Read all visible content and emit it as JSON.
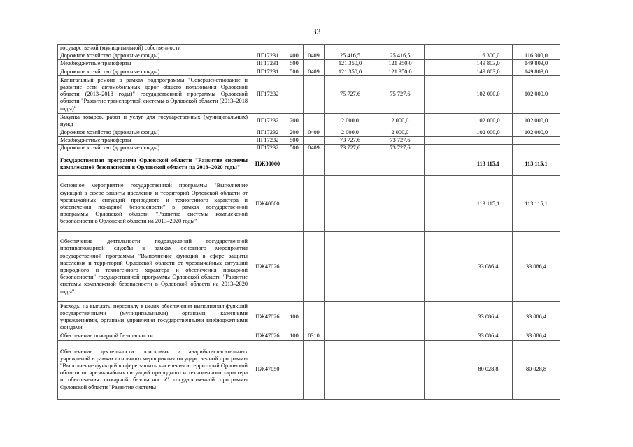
{
  "page_number": "33",
  "rows": [
    {
      "desc": "государственой (муниципальной) собственности",
      "code": "",
      "vr": "",
      "rz": "",
      "v1": "",
      "v2": "",
      "v3": "",
      "v4": "",
      "v5": "",
      "bold": false,
      "h": 10
    },
    {
      "desc": "Дорожное хозяйство (дорожные фонды)",
      "code": "ПГ17231",
      "vr": "400",
      "rz": "0409",
      "v1": "25 416,5",
      "v2": "25 416,5",
      "v3": "",
      "v4": "116 300,0",
      "v5": "116 300,0",
      "bold": false,
      "h": 11
    },
    {
      "desc": "Межбюджетные трансферты",
      "code": "ПГ17231",
      "vr": "500",
      "rz": "",
      "v1": "121 350,0",
      "v2": "121 350,0",
      "v3": "",
      "v4": "149 803,0",
      "v5": "149 803,0",
      "bold": false,
      "h": 11
    },
    {
      "desc": "Дорожное хозяйство (дорожные фонды)",
      "code": "ПГ17231",
      "vr": "500",
      "rz": "0409",
      "v1": "121 350,0",
      "v2": "121 350,0",
      "v3": "",
      "v4": "149 803,0",
      "v5": "149 803,0",
      "bold": false,
      "h": 11
    },
    {
      "desc": "Капитальный ремонт в рамках подпрограммы \"Совершенствование и развитие сети автомобильных дорог общего пользования Орловской области (2013–2018 годы)\" государственной программы Орловской области \"Развитие транспортной системы в Орловской области (2013–2018 годы)\"",
      "code": "ПГ17232",
      "vr": "",
      "rz": "",
      "v1": "75 727,6",
      "v2": "75 727,6",
      "v3": "",
      "v4": "102 000,0",
      "v5": "102 000,0",
      "bold": false,
      "h": 54
    },
    {
      "desc": "Закупка товаров, работ и услуг для государственных (муниципальных) нужд",
      "code": "ПГ17232",
      "vr": "200",
      "rz": "",
      "v1": "2 000,0",
      "v2": "2 000,0",
      "v3": "",
      "v4": "102 000,0",
      "v5": "102 000,0",
      "bold": false,
      "h": 22
    },
    {
      "desc": "Дорожное хозяйство (дорожные фонды)",
      "code": "ПГ17232",
      "vr": "200",
      "rz": "0409",
      "v1": "2 000,0",
      "v2": "2 000,0",
      "v3": "",
      "v4": "102 000,0",
      "v5": "102 000,0",
      "bold": false,
      "h": 11
    },
    {
      "desc": "Межбюджетные трансферты",
      "code": "ПГ17232",
      "vr": "500",
      "rz": "",
      "v1": "73 727,6",
      "v2": "73 727,6",
      "v3": "",
      "v4": "",
      "v5": "",
      "bold": false,
      "h": 11
    },
    {
      "desc": "Дорожное хозяйство (дорожные фонды)",
      "code": "ПГ17232",
      "vr": "500",
      "rz": "0409",
      "v1": "73 727,6",
      "v2": "73 727,6",
      "v3": "",
      "v4": "",
      "v5": "",
      "bold": false,
      "h": 11
    },
    {
      "desc": "Государственная программа Орловской области \"Развитие системы комплексной безопасности в Орловской области на 2013–2020 годы\"",
      "code": "ПЖ00000",
      "vr": "",
      "rz": "",
      "v1": "",
      "v2": "",
      "v3": "",
      "v4": "113 115,1",
      "v5": "113 115,1",
      "bold": true,
      "h": 34
    },
    {
      "desc": "Основное мероприятие государственной программы \"Выполнение функций в сфере защиты населения и территорий Орловской области от чрезвычайных ситуаций природного и техногенного характера и обеспечения пожарной безопасности\" в рамках государственной программы Орловской области \"Развитие системы комплексной безопасности в Орловской области на 2013–2020 годы\"",
      "code": "ПЖ40000",
      "vr": "",
      "rz": "",
      "v1": "",
      "v2": "",
      "v3": "",
      "v4": "113 115,1",
      "v5": "113 115,1",
      "bold": false,
      "h": 80
    },
    {
      "desc": "Обеспечение деятельности подразделений государственной противопожарной службы в рамках основного мероприятия государственной программы \"Выполнение функций в сфере защиты населения и территорий Орловской области от чрезвычайных ситуаций природного и техногенного характера и обеспечения пожарной безопасности\" государственной программы Орловской области \"Развитие системы комплексной безопасности в Орловской области на 2013–2020 годы\"",
      "code": "ПЖ47026",
      "vr": "",
      "rz": "",
      "v1": "",
      "v2": "",
      "v3": "",
      "v4": "33 086,4",
      "v5": "33 086,4",
      "bold": false,
      "h": 100
    },
    {
      "desc": "Расходы на выплаты персоналу в целях обеспечения выполнения функций государственными (муниципальными) органами, казенными учреждениями, органами управления государственными внебюджетными фондами",
      "code": "ПЖ47026",
      "vr": "100",
      "rz": "",
      "v1": "",
      "v2": "",
      "v3": "",
      "v4": "33 086,4",
      "v5": "33 086,4",
      "bold": false,
      "h": 44
    },
    {
      "desc": "Обеспечение пожарной безопасности",
      "code": "ПЖ47026",
      "vr": "100",
      "rz": "0310",
      "v1": "",
      "v2": "",
      "v3": "",
      "v4": "33 086,4",
      "v5": "33 086,4",
      "bold": false,
      "h": 11
    },
    {
      "desc": "Обеспечение деятельности поисковых и аварийно-спасательных учреждений в рамках основного мероприятия государственной программы \"Выполнение функций в сфере защиты населения и территорий Орловской области от чрезвычайных ситуаций природного и техногенного характера и обеспечения пожарной безопасности\" государственной программы Орловской области \"Развитие системы",
      "code": "ПЖ47050",
      "vr": "",
      "rz": "",
      "v1": "",
      "v2": "",
      "v3": "",
      "v4": "80 028,8",
      "v5": "80 028,8",
      "bold": false,
      "h": 84
    }
  ]
}
